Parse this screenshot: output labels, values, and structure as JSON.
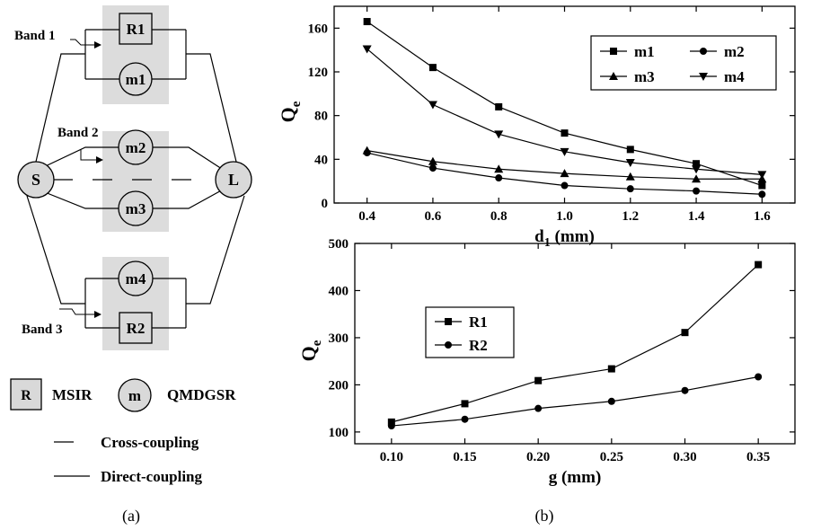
{
  "diagram": {
    "bands": [
      "Band 1",
      "Band 2",
      "Band 3"
    ],
    "source": "S",
    "load": "L",
    "resonators": [
      "R1",
      "m1",
      "m2",
      "m3",
      "m4",
      "R2"
    ],
    "legend": {
      "msir_symbol": "R",
      "msir_label": "MSIR",
      "qmdgsr_symbol": "m",
      "qmdgsr_label": "QMDGSR",
      "cross_label": "Cross-coupling",
      "direct_label": "Direct-coupling"
    },
    "caption": "(a)"
  },
  "caption_b": "(b)",
  "chart_data": [
    {
      "type": "line",
      "x": [
        0.4,
        0.6,
        0.8,
        1.0,
        1.2,
        1.4,
        1.6
      ],
      "series": [
        {
          "name": "m1",
          "marker": "square",
          "values": [
            166,
            124,
            88,
            64,
            49,
            36,
            16
          ]
        },
        {
          "name": "m2",
          "marker": "circle",
          "values": [
            46,
            32,
            23,
            16,
            13,
            11,
            8
          ]
        },
        {
          "name": "m3",
          "marker": "triangle",
          "values": [
            48,
            38,
            31,
            27,
            24,
            22,
            22
          ]
        },
        {
          "name": "m4",
          "marker": "inverted-triangle",
          "values": [
            141,
            90,
            63,
            47,
            37,
            31,
            26
          ]
        }
      ],
      "xlabel_main": "d",
      "xlabel_sub": "1",
      "xlabel_unit": " (mm)",
      "ylabel_main": "Q",
      "ylabel_sub": "e",
      "xlim": [
        0.3,
        1.7
      ],
      "ylim": [
        0,
        180
      ],
      "xticks": [
        "0.4",
        "0.6",
        "0.8",
        "1.0",
        "1.2",
        "1.4",
        "1.6"
      ],
      "yticks": [
        "0",
        "40",
        "80",
        "120",
        "160"
      ],
      "legend_position": "top-right"
    },
    {
      "type": "line",
      "x": [
        0.1,
        0.15,
        0.2,
        0.25,
        0.3,
        0.35
      ],
      "series": [
        {
          "name": "R1",
          "marker": "square",
          "values": [
            121,
            160,
            209,
            234,
            311,
            455
          ]
        },
        {
          "name": "R2",
          "marker": "circle",
          "values": [
            113,
            127,
            150,
            165,
            188,
            217
          ]
        }
      ],
      "xlabel": "g (mm)",
      "ylabel_main": "Q",
      "ylabel_sub": "e",
      "xlim": [
        0.075,
        0.375
      ],
      "ylim": [
        75,
        500
      ],
      "xticks": [
        "0.10",
        "0.15",
        "0.20",
        "0.25",
        "0.30",
        "0.35"
      ],
      "yticks": [
        "100",
        "200",
        "300",
        "400",
        "500"
      ],
      "legend_position": "top-left"
    }
  ]
}
